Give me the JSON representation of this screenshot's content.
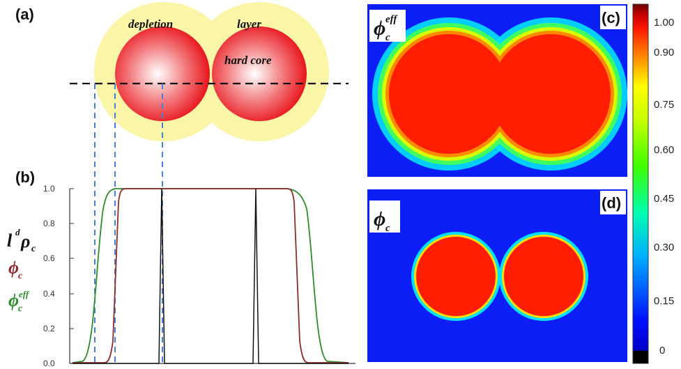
{
  "panel_a": {
    "label": "(a)",
    "word_depletion": "depletion",
    "word_layer": "layer",
    "word_hard_core": "hard core"
  },
  "panel_b": {
    "label": "(b)",
    "legend_rho": "l",
    "legend_rho_sup": "d",
    "legend_rho_sym": "ρ",
    "legend_rho_sub": "c",
    "legend_phi": "ϕ",
    "legend_phi_sub": "c",
    "legend_phieff": "ϕ",
    "legend_phieff_sub": "c",
    "legend_phieff_sup": "eff"
  },
  "panel_c": {
    "label": "(c)",
    "title_sym": "ϕ",
    "title_sub": "c",
    "title_sup": "eff"
  },
  "panel_d": {
    "label": "(d)",
    "title_sym": "ϕ",
    "title_sub": "c"
  },
  "colorbar": {
    "ticks": [
      "1.00",
      "0.90",
      "0.75",
      "0.60",
      "0.45",
      "0.30",
      "0.15",
      "0"
    ]
  },
  "colors": {
    "phi_eff_green": "#2e8b2e",
    "phi_brown": "#8b2b2b",
    "rho_black": "#111111",
    "core_red": "#e8141c",
    "layer_yellow": "#fbf5a8",
    "field_blue": "#0a1ef5",
    "guide_blue": "#4a7fd6"
  },
  "chart_data": {
    "type": "line",
    "yticks": [
      "1.0",
      "0.8",
      "0.6",
      "0.4",
      "0.2",
      "0.0"
    ],
    "ylim": [
      0,
      1
    ],
    "series": [
      {
        "name": "ϕc eff",
        "color": "#2e8b2e",
        "values": [
          0,
          0.05,
          0.3,
          0.8,
          1,
          1,
          1,
          1,
          0.8,
          0.3,
          0.05,
          0
        ]
      },
      {
        "name": "ϕc",
        "color": "#8b2b2b",
        "values": [
          0,
          0,
          0,
          1,
          1,
          1,
          1,
          1,
          1,
          0,
          0,
          0
        ]
      },
      {
        "name": "ldρc",
        "color": "#111111",
        "values": [
          0,
          0,
          0,
          0,
          1,
          0,
          0,
          1,
          0,
          0,
          0,
          0
        ]
      }
    ]
  }
}
